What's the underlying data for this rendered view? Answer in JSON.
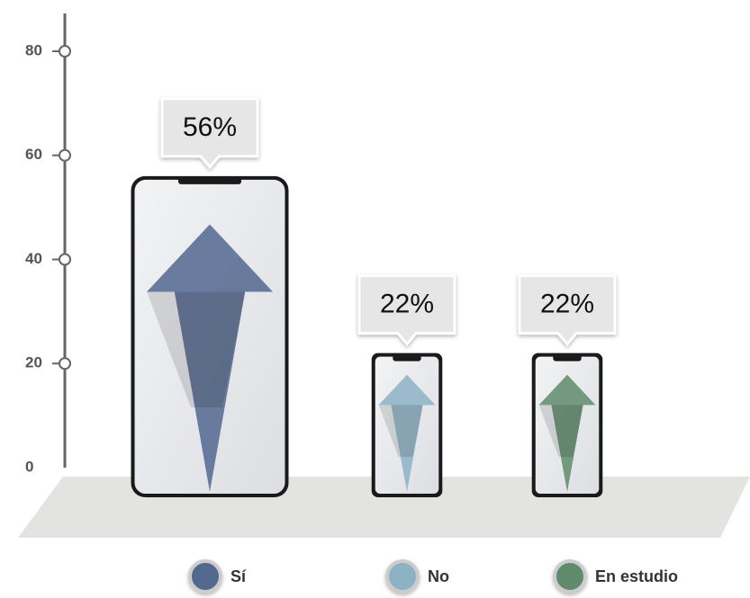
{
  "chart_data": {
    "type": "bar",
    "categories": [
      "Sí",
      "No",
      "En estudio"
    ],
    "values": [
      56,
      22,
      22
    ],
    "value_labels": [
      "56%",
      "22%",
      "22%"
    ],
    "colors": [
      "#52678f",
      "#8db2c4",
      "#5f8b6b"
    ],
    "ylim": [
      0,
      80
    ],
    "yticks": [
      0,
      20,
      40,
      60,
      80
    ],
    "legend": "bottom"
  }
}
